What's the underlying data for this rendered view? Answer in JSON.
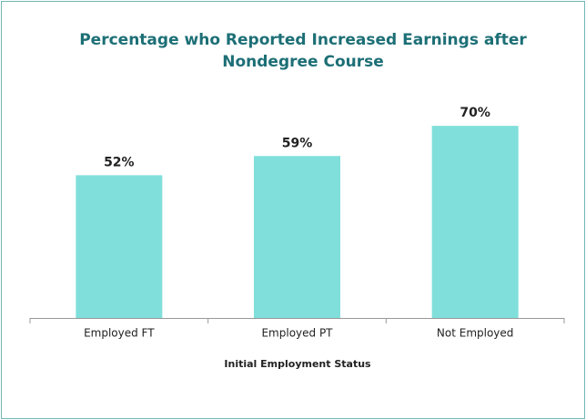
{
  "chart_data": {
    "type": "bar",
    "title": "Percentage who Reported Increased Earnings after",
    "title_line2": "Nondegree Course",
    "x_label": "Initial Employment Status",
    "categories": [
      "Employed FT",
      "Employed PT",
      "Not Employed"
    ],
    "values": [
      52,
      59,
      70
    ],
    "value_labels": [
      "52%",
      "59%",
      "70%"
    ],
    "color": "#80dfda",
    "ylim": [
      0,
      80
    ]
  }
}
